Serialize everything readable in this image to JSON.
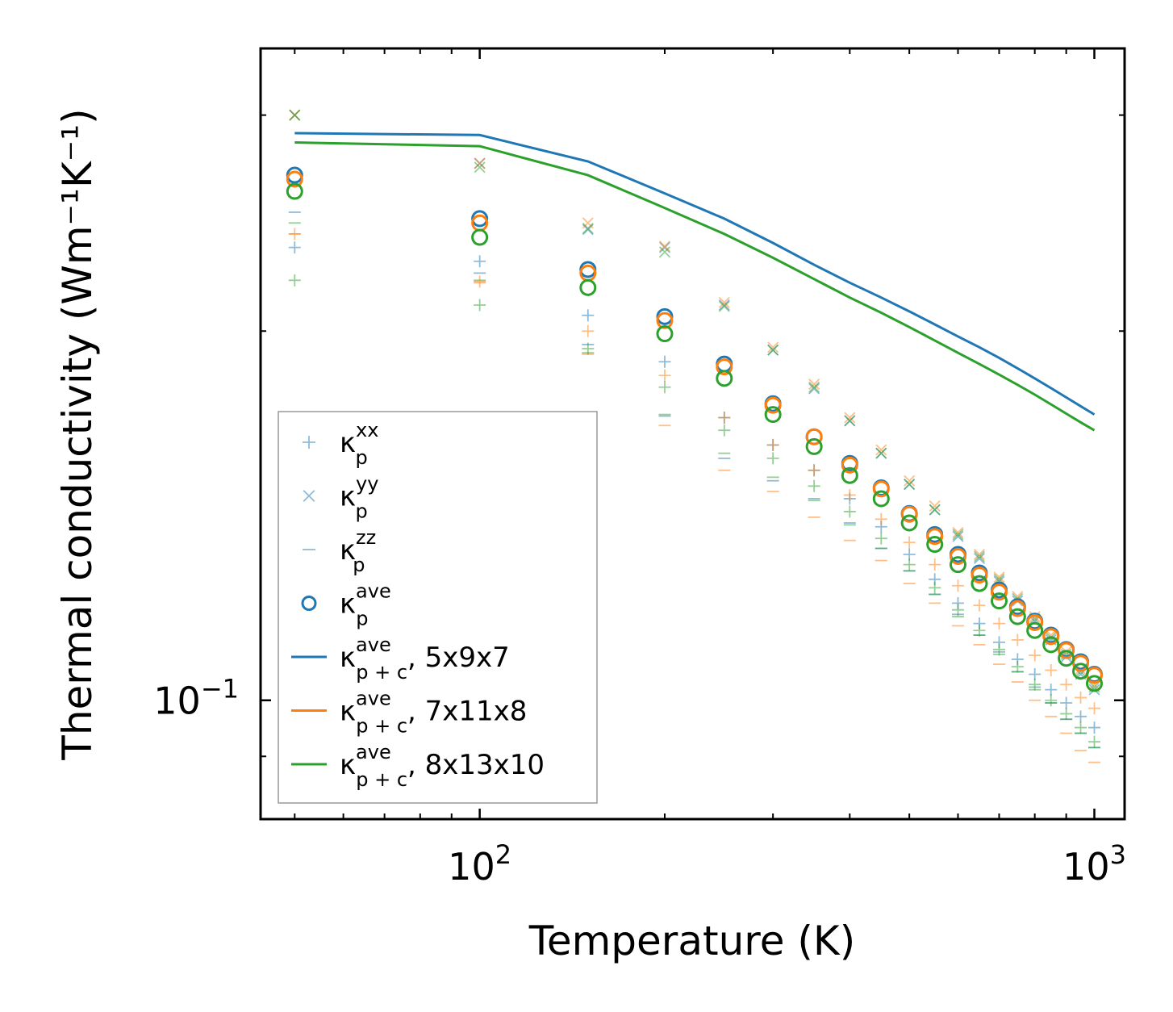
{
  "chart_data": {
    "type": "scatter",
    "xlabel": "Temperature (K)",
    "ylabel": "Thermal conductivity (Wm⁻¹K⁻¹)",
    "x_scale": "log",
    "y_scale": "log",
    "xlim": [
      44,
      1120
    ],
    "ylim": [
      0.08,
      0.34
    ],
    "x_ticks": [
      {
        "value": 100,
        "base": "10",
        "exp": "2"
      },
      {
        "value": 1000,
        "base": "10",
        "exp": "3"
      }
    ],
    "y_ticks": [
      {
        "value": 0.1,
        "base": "10",
        "exp": "−1"
      }
    ],
    "temperatures": [
      50,
      100,
      150,
      200,
      250,
      300,
      350,
      400,
      450,
      500,
      550,
      600,
      650,
      700,
      750,
      800,
      850,
      900,
      950,
      1000
    ],
    "colors": {
      "C0": "#1f77b4",
      "C1": "#ff7f0e",
      "C2": "#2ca02c"
    },
    "legend": [
      {
        "label": "κ",
        "sub": "p",
        "sup": "xx",
        "marker": "plus",
        "color": "C0"
      },
      {
        "label": "κ",
        "sub": "p",
        "sup": "yy",
        "marker": "x",
        "color": "C0"
      },
      {
        "label": "κ",
        "sub": "p",
        "sup": "zz",
        "marker": "dash",
        "color": "C0"
      },
      {
        "label": "κ",
        "sub": "p",
        "sup": "ave",
        "marker": "circle",
        "color": "C0"
      },
      {
        "label": "κ",
        "sub": "p + c",
        "sup": "ave",
        "suffix": ", 5x9x7",
        "marker": "line",
        "color": "C0"
      },
      {
        "label": "κ",
        "sub": "p + c",
        "sup": "ave",
        "suffix": ", 7x11x8",
        "marker": "line",
        "color": "C1"
      },
      {
        "label": "κ",
        "sub": "p + c",
        "sup": "ave",
        "suffix": ", 8x13x10",
        "marker": "line",
        "color": "C2"
      }
    ],
    "series": [
      {
        "name": "5x9x7",
        "color": "C0",
        "kxx": [
          0.234,
          0.228,
          0.206,
          0.1888,
          0.17,
          0.1615,
          0.154,
          0.146,
          0.1385,
          0.1315,
          0.1255,
          0.12,
          0.1155,
          0.1115,
          0.108,
          0.105,
          0.102,
          0.0995,
          0.097,
          0.095
        ],
        "kyy": [
          0.3,
          0.274,
          0.242,
          0.234,
          0.21,
          0.193,
          0.1795,
          0.169,
          0.159,
          0.15,
          0.143,
          0.136,
          0.1305,
          0.125,
          0.1205,
          0.116,
          0.112,
          0.1085,
          0.105,
          0.102
        ],
        "kzz": [
          0.25,
          0.223,
          0.195,
          0.1705,
          0.1575,
          0.151,
          0.146,
          0.1395,
          0.133,
          0.1275,
          0.122,
          0.1175,
          0.113,
          0.1095,
          0.1055,
          0.1025,
          0.0995,
          0.0965,
          0.094,
          0.0915
        ],
        "kave": [
          0.268,
          0.247,
          0.2245,
          0.2055,
          0.188,
          0.1745,
          0.164,
          0.156,
          0.149,
          0.142,
          0.1365,
          0.1315,
          0.127,
          0.123,
          0.1192,
          0.116,
          0.113,
          0.11,
          0.1075,
          0.105
        ],
        "kpc": [
          0.29,
          0.289,
          0.275,
          0.259,
          0.247,
          0.236,
          0.2265,
          0.219,
          0.213,
          0.2075,
          0.2025,
          0.198,
          0.194,
          0.1902,
          0.1865,
          0.183,
          0.1797,
          0.1766,
          0.1737,
          0.171
        ]
      },
      {
        "name": "7x11x8",
        "color": "C1",
        "kxx": [
          0.24,
          0.2195,
          0.2,
          0.184,
          0.17,
          0.1615,
          0.154,
          0.147,
          0.1405,
          0.1345,
          0.129,
          0.124,
          0.1195,
          0.1155,
          0.112,
          0.1088,
          0.1058,
          0.103,
          0.1005,
          0.0985
        ],
        "kyy": [
          0.3,
          0.274,
          0.245,
          0.2345,
          0.211,
          0.194,
          0.181,
          0.17,
          0.16,
          0.151,
          0.144,
          0.137,
          0.1315,
          0.126,
          0.1215,
          0.117,
          0.113,
          0.1095,
          0.106,
          0.103
        ],
        "kzz": [
          0.24,
          0.219,
          0.1915,
          0.1675,
          0.154,
          0.148,
          0.141,
          0.135,
          0.13,
          0.1245,
          0.12,
          0.115,
          0.111,
          0.107,
          0.1035,
          0.1,
          0.097,
          0.094,
          0.091,
          0.089
        ],
        "kave": [
          0.266,
          0.245,
          0.223,
          0.204,
          0.187,
          0.174,
          0.164,
          0.1555,
          0.1487,
          0.1418,
          0.136,
          0.131,
          0.1265,
          0.1225,
          0.1188,
          0.1157,
          0.1127,
          0.1098,
          0.1072,
          0.1048
        ]
      },
      {
        "name": "8x13x10",
        "color": "C2",
        "kxx": [
          0.22,
          0.21,
          0.1935,
          0.18,
          0.166,
          0.1575,
          0.1495,
          0.1425,
          0.1355,
          0.129,
          0.1235,
          0.1185,
          0.114,
          0.11,
          0.1065,
          0.103,
          0.1,
          0.0975,
          0.095,
          0.0925
        ],
        "kyy": [
          0.3,
          0.272,
          0.2425,
          0.232,
          0.2095,
          0.193,
          0.18,
          0.169,
          0.159,
          0.15,
          0.143,
          0.1365,
          0.131,
          0.1255,
          0.121,
          0.1165,
          0.1125,
          0.109,
          0.1055,
          0.1025
        ],
        "kzz": [
          0.245,
          0.22,
          0.192,
          0.171,
          0.159,
          0.152,
          0.1455,
          0.139,
          0.133,
          0.1275,
          0.122,
          0.117,
          0.113,
          0.109,
          0.1055,
          0.102,
          0.0995,
          0.0965,
          0.094,
          0.0915
        ],
        "kave": [
          0.26,
          0.2385,
          0.217,
          0.199,
          0.183,
          0.171,
          0.161,
          0.1525,
          0.146,
          0.1395,
          0.134,
          0.129,
          0.1245,
          0.1205,
          0.117,
          0.114,
          0.111,
          0.1082,
          0.1056,
          0.1032
        ],
        "kpc": [
          0.285,
          0.283,
          0.268,
          0.252,
          0.24,
          0.2295,
          0.2205,
          0.213,
          0.207,
          0.2015,
          0.1965,
          0.192,
          0.188,
          0.1843,
          0.1808,
          0.1775,
          0.1743,
          0.1713,
          0.1685,
          0.166
        ]
      }
    ]
  }
}
